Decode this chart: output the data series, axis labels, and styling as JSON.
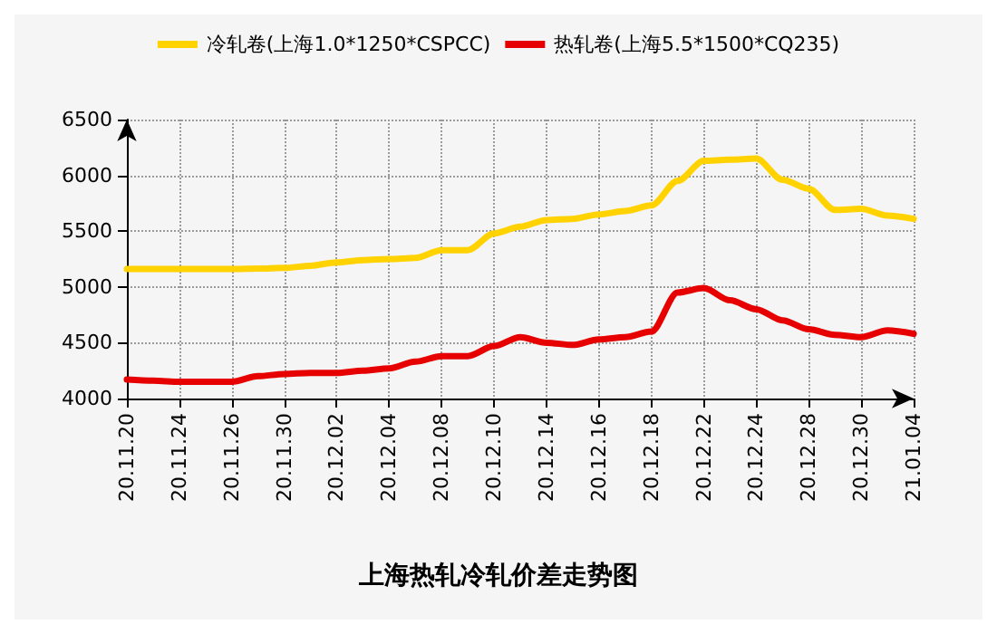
{
  "chart_data": {
    "type": "line",
    "title": "上海热轧冷轧价差走势图",
    "categories": [
      "20.11.20",
      null,
      "20.11.24",
      null,
      "20.11.26",
      null,
      "20.11.30",
      null,
      "20.12.02",
      null,
      "20.12.04",
      null,
      "20.12.08",
      null,
      "20.12.10",
      null,
      "20.12.14",
      null,
      "20.12.16",
      null,
      "20.12.18",
      null,
      "20.12.22",
      null,
      "20.12.24",
      null,
      "20.12.28",
      null,
      "20.12.30",
      null,
      "21.01.04"
    ],
    "series": [
      {
        "name": "冷轧卷(上海1.0*1250*CSPCC)",
        "color": "#ffd200",
        "values": [
          5160,
          5160,
          5160,
          5160,
          5160,
          5165,
          5170,
          5190,
          5220,
          5240,
          5250,
          5260,
          5330,
          5330,
          5480,
          5540,
          5600,
          5610,
          5650,
          5680,
          5730,
          5950,
          6130,
          6140,
          6150,
          5960,
          5880,
          5690,
          5700,
          5640,
          5610
        ]
      },
      {
        "name": "热轧卷(上海5.5*1500*CQ235)",
        "color": "#e60000",
        "values": [
          4170,
          4160,
          4150,
          4150,
          4150,
          4200,
          4220,
          4230,
          4230,
          4250,
          4270,
          4330,
          4380,
          4380,
          4470,
          4550,
          4500,
          4480,
          4530,
          4550,
          4600,
          4950,
          4990,
          4880,
          4800,
          4700,
          4620,
          4570,
          4550,
          4610,
          4580
        ]
      }
    ],
    "ylim": [
      4000,
      6500
    ],
    "yticks": [
      4000,
      4500,
      5000,
      5500,
      6000,
      6500
    ],
    "grid": true,
    "legend": "top",
    "marker": "none",
    "line_style": "solid"
  }
}
